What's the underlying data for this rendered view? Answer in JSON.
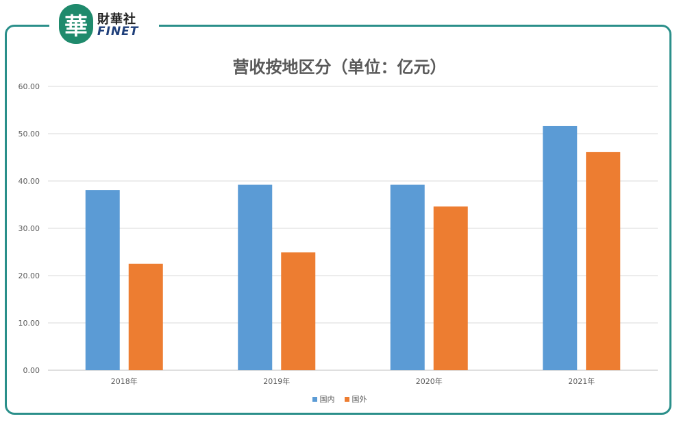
{
  "logo": {
    "glyph": "華",
    "cn_name": "財華社",
    "en_name": "FINET"
  },
  "chart_data": {
    "type": "bar",
    "title": "营收按地区分（单位：亿元）",
    "categories": [
      "2018年",
      "2019年",
      "2020年",
      "2021年"
    ],
    "series": [
      {
        "name": "国内",
        "color": "#5b9bd5",
        "values": [
          38.1,
          39.2,
          39.2,
          51.6
        ]
      },
      {
        "name": "国外",
        "color": "#ed7d31",
        "values": [
          22.5,
          24.9,
          34.6,
          46.1
        ]
      }
    ],
    "ylim": [
      0,
      60
    ],
    "yticks": [
      "0.00",
      "10.00",
      "20.00",
      "30.00",
      "40.00",
      "50.00",
      "60.00"
    ],
    "grid": true,
    "legend_position": "bottom",
    "xlabel": "",
    "ylabel": ""
  }
}
